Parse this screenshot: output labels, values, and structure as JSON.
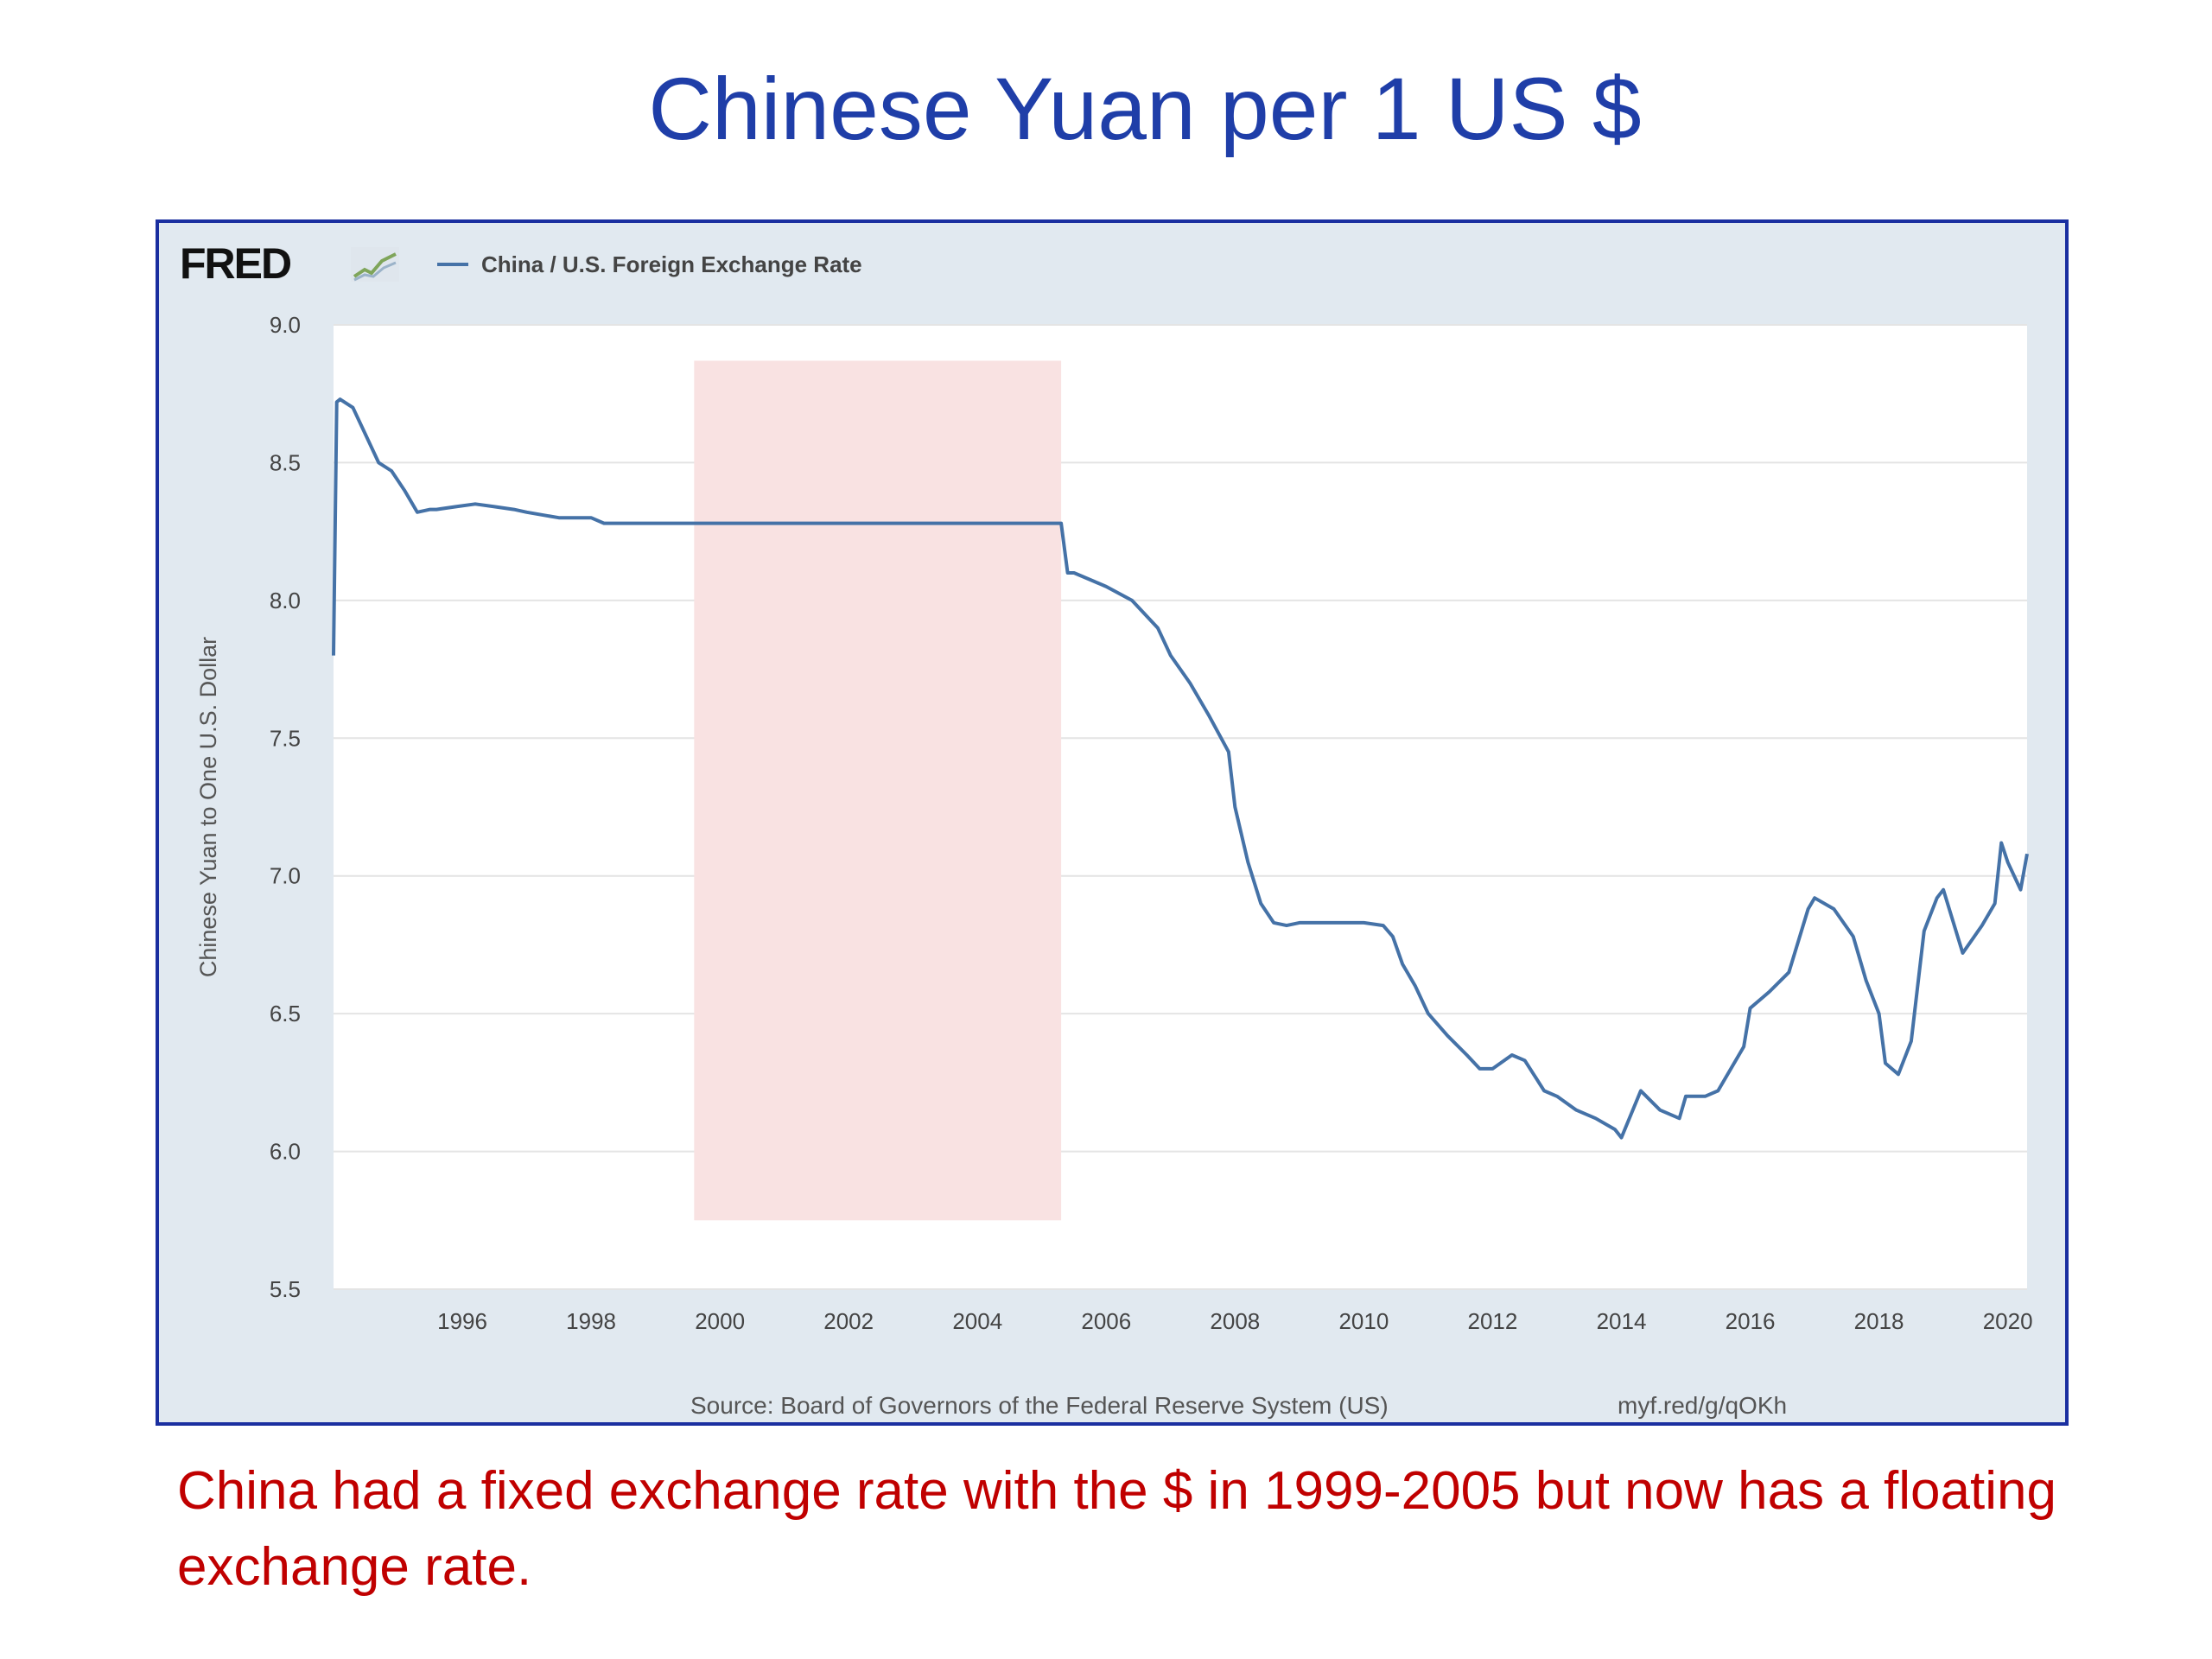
{
  "slide": {
    "title": "Chinese Yuan per 1 US $",
    "caption": "China had a fixed exchange rate with the $ in 1999-2005 but now has a floating exchange rate."
  },
  "fred": {
    "logo_text": "FRED",
    "logo_icon": "line-graph-icon",
    "source": "Source: Board of Governors of the Federal Reserve System (US)",
    "short_url": "myf.red/g/qOKh"
  },
  "colors": {
    "title": "#1f3ea8",
    "caption": "#c00000",
    "frame_border": "#1a2fa0",
    "chart_bg": "#e1e9f0",
    "line": "#4572a7",
    "highlight": "#f9e2e2"
  },
  "chart_data": {
    "type": "line",
    "title": "",
    "xlabel": "",
    "ylabel": "Chinese Yuan to One U.S. Dollar",
    "xlim": [
      1994.0,
      2020.3
    ],
    "ylim": [
      5.5,
      9.0
    ],
    "grid": true,
    "legend": "top-left",
    "x_ticks": [
      "1996",
      "1998",
      "2000",
      "2002",
      "2004",
      "2006",
      "2008",
      "2010",
      "2012",
      "2014",
      "2016",
      "2018",
      "2020"
    ],
    "y_ticks": [
      "5.5",
      "6.0",
      "6.5",
      "7.0",
      "7.5",
      "8.0",
      "8.5",
      "9.0"
    ],
    "highlight_band": {
      "x": [
        1999.6,
        2005.3
      ],
      "y": [
        5.75,
        8.87
      ]
    },
    "series": [
      {
        "name": "China / U.S. Foreign Exchange Rate",
        "x": [
          1994.0,
          1994.05,
          1994.1,
          1994.3,
          1994.5,
          1994.7,
          1994.9,
          1995.1,
          1995.3,
          1995.5,
          1995.6,
          1995.9,
          1996.2,
          1996.5,
          1996.8,
          1997.0,
          1997.5,
          1998.0,
          1998.2,
          1998.6,
          1999.0,
          1999.6,
          2001.0,
          2002.0,
          2003.0,
          2004.0,
          2004.8,
          2005.3,
          2005.4,
          2005.5,
          2005.8,
          2006.0,
          2006.4,
          2006.8,
          2007.0,
          2007.3,
          2007.6,
          2007.9,
          2008.0,
          2008.2,
          2008.4,
          2008.6,
          2008.8,
          2009.0,
          2009.5,
          2010.0,
          2010.3,
          2010.45,
          2010.6,
          2010.8,
          2011.0,
          2011.3,
          2011.6,
          2011.8,
          2012.0,
          2012.3,
          2012.5,
          2012.8,
          2013.0,
          2013.3,
          2013.6,
          2013.9,
          2014.0,
          2014.3,
          2014.6,
          2014.9,
          2015.0,
          2015.3,
          2015.5,
          2015.7,
          2015.9,
          2016.0,
          2016.3,
          2016.6,
          2016.9,
          2017.0,
          2017.3,
          2017.6,
          2017.8,
          2018.0,
          2018.1,
          2018.3,
          2018.5,
          2018.7,
          2018.9,
          2019.0,
          2019.3,
          2019.6,
          2019.8,
          2019.9,
          2020.0,
          2020.2,
          2020.3
        ],
        "y": [
          7.8,
          8.72,
          8.73,
          8.7,
          8.6,
          8.5,
          8.47,
          8.4,
          8.32,
          8.33,
          8.33,
          8.34,
          8.35,
          8.34,
          8.33,
          8.32,
          8.3,
          8.3,
          8.28,
          8.28,
          8.28,
          8.28,
          8.28,
          8.28,
          8.28,
          8.28,
          8.28,
          8.28,
          8.1,
          8.1,
          8.07,
          8.05,
          8.0,
          7.9,
          7.8,
          7.7,
          7.58,
          7.45,
          7.25,
          7.05,
          6.9,
          6.83,
          6.82,
          6.83,
          6.83,
          6.83,
          6.82,
          6.78,
          6.68,
          6.6,
          6.5,
          6.42,
          6.35,
          6.3,
          6.3,
          6.35,
          6.33,
          6.22,
          6.2,
          6.15,
          6.12,
          6.08,
          6.05,
          6.22,
          6.15,
          6.12,
          6.2,
          6.2,
          6.22,
          6.3,
          6.38,
          6.52,
          6.58,
          6.65,
          6.88,
          6.92,
          6.88,
          6.78,
          6.62,
          6.5,
          6.32,
          6.28,
          6.4,
          6.8,
          6.92,
          6.95,
          6.72,
          6.82,
          6.9,
          7.12,
          7.05,
          6.95,
          7.08
        ]
      }
    ]
  }
}
